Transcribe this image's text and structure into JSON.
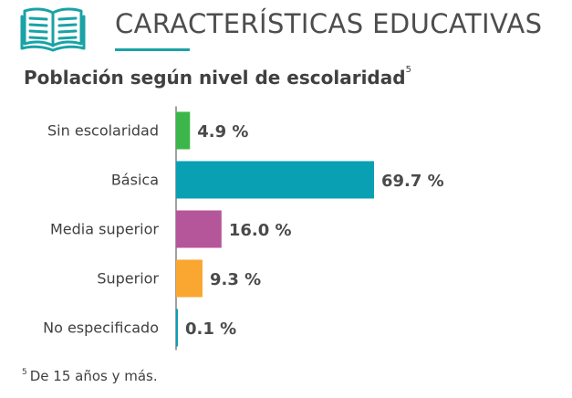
{
  "header": {
    "section_title": "CARACTERÍSTICAS EDUCATIVAS",
    "icon": "open-book-icon",
    "accent_color": "#1aa2a6"
  },
  "chart_title": {
    "text": "Población según nivel de escolaridad",
    "footnote_marker": "5"
  },
  "chart_data": {
    "type": "bar",
    "orientation": "horizontal",
    "title": "Población según nivel de escolaridad",
    "xlabel": "",
    "ylabel": "",
    "unit": "%",
    "grid": false,
    "categories": [
      "Sin escolaridad",
      "Básica",
      "Media superior",
      "Superior",
      "No especificado"
    ],
    "values": [
      4.9,
      69.7,
      16.0,
      9.3,
      0.1
    ],
    "value_labels": [
      "4.9 %",
      "69.7 %",
      "16.0 %",
      "9.3 %",
      "0.1 %"
    ],
    "colors": [
      "#3cb64a",
      "#0aa0b4",
      "#b5569b",
      "#faa732",
      "#0aa0b4"
    ],
    "xlim": [
      0,
      100
    ]
  },
  "footnote": {
    "marker": "5",
    "text": "De 15 años y más."
  }
}
